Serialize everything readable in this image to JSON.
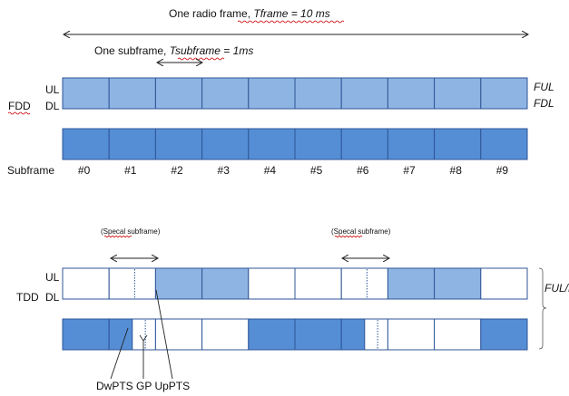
{
  "title": {
    "prefix": "One radio frame, ",
    "italic": "Tframe = 10 ms"
  },
  "subframe_label": {
    "prefix": "One subframe, ",
    "italic": "Tsubframe = 1ms"
  },
  "fdd": {
    "label": "FDD",
    "ul_label": "UL",
    "dl_label": "DL",
    "f_ul": "FUL",
    "f_dl": "FDL",
    "ul_color": "#8eb4e3",
    "dl_color": "#558ed5"
  },
  "subframe_row_label": "Subframe",
  "subframe_numbers": [
    "#0",
    "#1",
    "#2",
    "#3",
    "#4",
    "#5",
    "#6",
    "#7",
    "#8",
    "#9"
  ],
  "tdd": {
    "label": "TDD",
    "ul_label": "UL",
    "dl_label": "DL",
    "f_label": "FUL/DL",
    "special_label_1": "(Specal subframe)",
    "special_label_2": "(Specal subframe)",
    "ul_pattern": [
      "empty",
      "special",
      "ul",
      "ul",
      "empty",
      "empty",
      "special",
      "ul",
      "ul",
      "empty"
    ],
    "dl_pattern": [
      "dl",
      "special",
      "empty",
      "empty",
      "dl",
      "dl",
      "special",
      "empty",
      "empty",
      "dl"
    ],
    "annotation": "DwPTS GP UpPTS"
  }
}
